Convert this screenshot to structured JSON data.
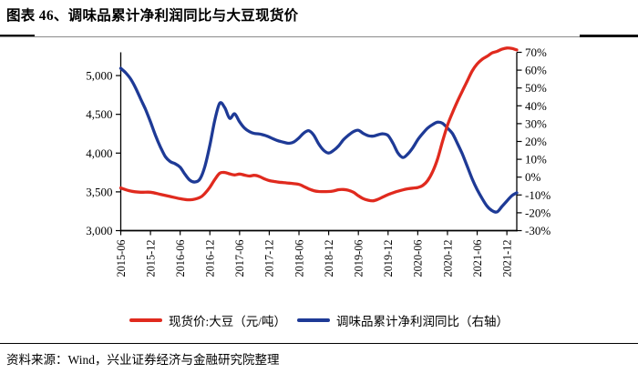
{
  "title": "图表 46、调味品累计净利润同比与大豆现货价",
  "source": "资料来源：Wind，兴业证券经济与金融研究院整理",
  "colors": {
    "price_red": "#e02a1e",
    "profit_blue": "#1e3a96",
    "axis_black": "#000000"
  },
  "chart_data": {
    "type": "line",
    "title": "调味品累计净利润同比与大豆现货价",
    "grid": false,
    "legend_position": "bottom",
    "x_axis": {
      "tick_labels": [
        "2015-06",
        "2015-12",
        "2016-06",
        "2016-12",
        "2017-06",
        "2017-12",
        "2018-06",
        "2018-12",
        "2019-06",
        "2019-12",
        "2020-06",
        "2020-12",
        "2021-06",
        "2021-12"
      ],
      "start": "2015-06",
      "end": "2022-02",
      "tick_interval_months": 6
    },
    "left_axis": {
      "label": "现货价:大豆（元/吨）",
      "min": 3000,
      "max": 5300,
      "tick_values": [
        3000,
        3500,
        4000,
        4500,
        5000
      ],
      "tick_labels": [
        "3,000",
        "3,500",
        "4,000",
        "4,500",
        "5,000"
      ]
    },
    "right_axis": {
      "label": "调味品累计净利润同比",
      "min": -30,
      "max": 70,
      "tick_values": [
        70,
        60,
        50,
        40,
        30,
        20,
        10,
        0,
        -10,
        -20,
        -30
      ],
      "tick_labels": [
        "70%",
        "60%",
        "50%",
        "40%",
        "30%",
        "20%",
        "10%",
        "0%",
        "-10%",
        "-20%",
        "-30%"
      ]
    },
    "series": [
      {
        "name": "现货价:大豆（元/吨）",
        "axis": "left",
        "color": "#e02a1e",
        "points": [
          [
            "2015-06",
            3550
          ],
          [
            "2015-08",
            3510
          ],
          [
            "2015-10",
            3495
          ],
          [
            "2015-12",
            3495
          ],
          [
            "2016-02",
            3468
          ],
          [
            "2016-04",
            3440
          ],
          [
            "2016-06",
            3412
          ],
          [
            "2016-08",
            3398
          ],
          [
            "2016-10",
            3428
          ],
          [
            "2016-11",
            3480
          ],
          [
            "2016-12",
            3560
          ],
          [
            "2017-01",
            3660
          ],
          [
            "2017-02",
            3740
          ],
          [
            "2017-03",
            3750
          ],
          [
            "2017-04",
            3732
          ],
          [
            "2017-05",
            3718
          ],
          [
            "2017-06",
            3730
          ],
          [
            "2017-07",
            3716
          ],
          [
            "2017-08",
            3704
          ],
          [
            "2017-09",
            3714
          ],
          [
            "2017-10",
            3698
          ],
          [
            "2017-11",
            3668
          ],
          [
            "2017-12",
            3645
          ],
          [
            "2018-01",
            3634
          ],
          [
            "2018-02",
            3624
          ],
          [
            "2018-04",
            3612
          ],
          [
            "2018-06",
            3596
          ],
          [
            "2018-07",
            3568
          ],
          [
            "2018-08",
            3538
          ],
          [
            "2018-09",
            3515
          ],
          [
            "2018-10",
            3505
          ],
          [
            "2018-12",
            3505
          ],
          [
            "2019-01",
            3512
          ],
          [
            "2019-02",
            3528
          ],
          [
            "2019-03",
            3530
          ],
          [
            "2019-04",
            3520
          ],
          [
            "2019-05",
            3495
          ],
          [
            "2019-06",
            3450
          ],
          [
            "2019-07",
            3412
          ],
          [
            "2019-08",
            3392
          ],
          [
            "2019-09",
            3385
          ],
          [
            "2019-10",
            3405
          ],
          [
            "2019-11",
            3435
          ],
          [
            "2019-12",
            3465
          ],
          [
            "2020-01",
            3488
          ],
          [
            "2020-02",
            3508
          ],
          [
            "2020-03",
            3526
          ],
          [
            "2020-04",
            3540
          ],
          [
            "2020-05",
            3548
          ],
          [
            "2020-06",
            3556
          ],
          [
            "2020-07",
            3582
          ],
          [
            "2020-08",
            3645
          ],
          [
            "2020-09",
            3760
          ],
          [
            "2020-10",
            3925
          ],
          [
            "2020-11",
            4150
          ],
          [
            "2020-12",
            4360
          ],
          [
            "2021-01",
            4520
          ],
          [
            "2021-02",
            4665
          ],
          [
            "2021-03",
            4800
          ],
          [
            "2021-04",
            4930
          ],
          [
            "2021-05",
            5060
          ],
          [
            "2021-06",
            5150
          ],
          [
            "2021-07",
            5210
          ],
          [
            "2021-08",
            5248
          ],
          [
            "2021-09",
            5292
          ],
          [
            "2021-10",
            5312
          ],
          [
            "2021-11",
            5340
          ],
          [
            "2021-12",
            5355
          ],
          [
            "2022-01",
            5350
          ],
          [
            "2022-02",
            5330
          ]
        ]
      },
      {
        "name": "调味品累计净利润同比（右轴）",
        "axis": "right",
        "color": "#1e3a96",
        "points": [
          [
            "2015-06",
            61
          ],
          [
            "2015-07",
            58.5
          ],
          [
            "2015-08",
            55
          ],
          [
            "2015-09",
            50
          ],
          [
            "2015-10",
            44
          ],
          [
            "2015-11",
            38
          ],
          [
            "2015-12",
            31
          ],
          [
            "2016-01",
            23.5
          ],
          [
            "2016-02",
            17
          ],
          [
            "2016-03",
            11.5
          ],
          [
            "2016-04",
            8.7
          ],
          [
            "2016-05",
            7.5
          ],
          [
            "2016-06",
            5.5
          ],
          [
            "2016-07",
            1.5
          ],
          [
            "2016-08",
            -1.8
          ],
          [
            "2016-09",
            -2.7
          ],
          [
            "2016-10",
            -1
          ],
          [
            "2016-11",
            6
          ],
          [
            "2016-12",
            18
          ],
          [
            "2017-01",
            32
          ],
          [
            "2017-02",
            41.5
          ],
          [
            "2017-03",
            39
          ],
          [
            "2017-04",
            33
          ],
          [
            "2017-05",
            35.5
          ],
          [
            "2017-06",
            31
          ],
          [
            "2017-07",
            27.5
          ],
          [
            "2017-08",
            25.5
          ],
          [
            "2017-09",
            24.5
          ],
          [
            "2017-10",
            24.2
          ],
          [
            "2017-11",
            23.5
          ],
          [
            "2017-12",
            22.5
          ],
          [
            "2018-01",
            21.2
          ],
          [
            "2018-02",
            20.2
          ],
          [
            "2018-03",
            19.5
          ],
          [
            "2018-04",
            19
          ],
          [
            "2018-05",
            19.8
          ],
          [
            "2018-06",
            22
          ],
          [
            "2018-07",
            24.8
          ],
          [
            "2018-08",
            26
          ],
          [
            "2018-09",
            23.5
          ],
          [
            "2018-10",
            18.5
          ],
          [
            "2018-11",
            15
          ],
          [
            "2018-12",
            13.5
          ],
          [
            "2019-01",
            15
          ],
          [
            "2019-02",
            17.5
          ],
          [
            "2019-03",
            21
          ],
          [
            "2019-04",
            23.5
          ],
          [
            "2019-05",
            25.5
          ],
          [
            "2019-06",
            26.3
          ],
          [
            "2019-07",
            24.5
          ],
          [
            "2019-08",
            23.2
          ],
          [
            "2019-09",
            23
          ],
          [
            "2019-10",
            23.8
          ],
          [
            "2019-11",
            24.3
          ],
          [
            "2019-12",
            23.3
          ],
          [
            "2020-01",
            19
          ],
          [
            "2020-02",
            13.5
          ],
          [
            "2020-03",
            11
          ],
          [
            "2020-04",
            13
          ],
          [
            "2020-05",
            16.5
          ],
          [
            "2020-06",
            21
          ],
          [
            "2020-07",
            24.5
          ],
          [
            "2020-08",
            27.5
          ],
          [
            "2020-09",
            29.5
          ],
          [
            "2020-10",
            30.8
          ],
          [
            "2020-11",
            30.2
          ],
          [
            "2020-12",
            27.5
          ],
          [
            "2021-01",
            24.5
          ],
          [
            "2021-02",
            19
          ],
          [
            "2021-03",
            13
          ],
          [
            "2021-04",
            6
          ],
          [
            "2021-05",
            -1
          ],
          [
            "2021-06",
            -7
          ],
          [
            "2021-07",
            -12
          ],
          [
            "2021-08",
            -16.3
          ],
          [
            "2021-09",
            -18.8
          ],
          [
            "2021-10",
            -19.5
          ],
          [
            "2021-11",
            -16.5
          ],
          [
            "2021-12",
            -13.4
          ],
          [
            "2022-01",
            -10.4
          ],
          [
            "2022-02",
            -8.8
          ]
        ]
      }
    ]
  }
}
